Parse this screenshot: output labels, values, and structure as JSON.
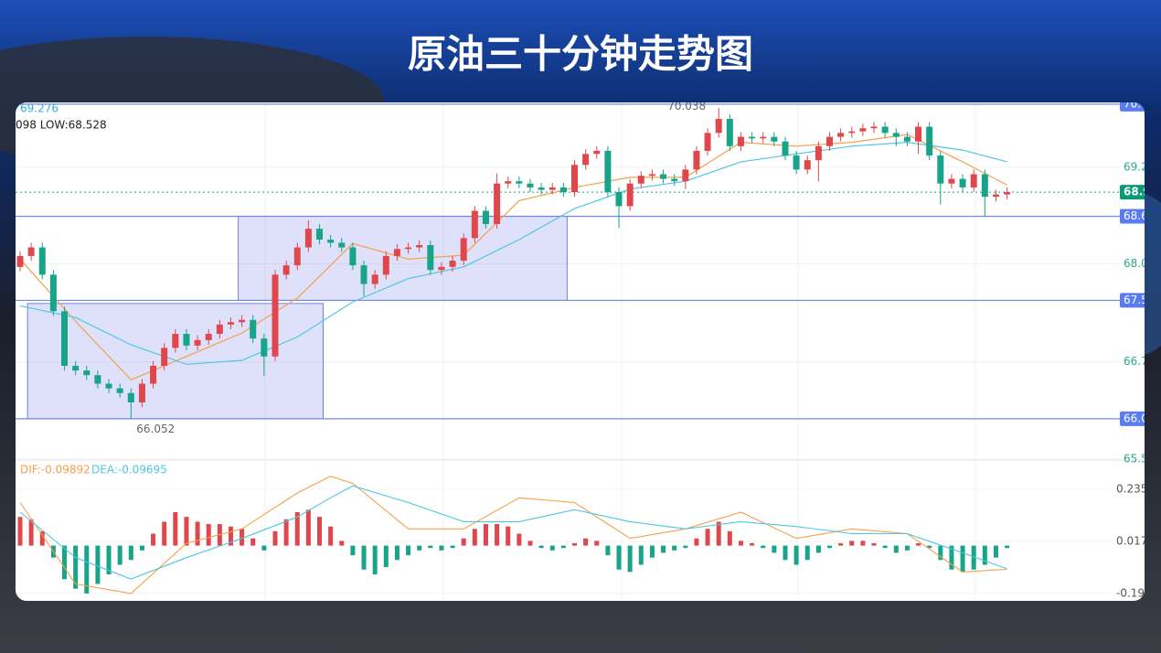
{
  "chart_data": {
    "type": "candlestick",
    "title": "原油三十分钟走势图",
    "info_ma": "69.276",
    "info_range": "098  LOW:68.528",
    "up_color": "#e0474c",
    "down_color": "#17a488",
    "open": [
      68.0,
      68.14,
      68.25,
      67.9,
      67.43,
      66.73,
      66.67,
      66.61,
      66.5,
      66.44,
      66.38,
      66.26,
      66.5,
      66.73,
      66.96,
      67.14,
      66.99,
      67.06,
      67.14,
      67.26,
      67.29,
      67.32,
      67.08,
      66.85,
      67.9,
      68.02,
      68.25,
      68.49,
      68.35,
      68.31,
      68.25,
      68.02,
      67.78,
      67.9,
      68.14,
      68.23,
      68.25,
      68.28,
      67.96,
      68.0,
      68.08,
      68.37,
      68.72,
      68.55,
      69.07,
      69.1,
      69.07,
      69.02,
      68.99,
      69.02,
      68.96,
      69.31,
      69.45,
      69.49,
      68.96,
      68.78,
      69.07,
      69.17,
      69.19,
      69.13,
      69.1,
      69.25,
      69.49,
      69.72,
      69.9,
      69.55,
      69.67,
      69.65,
      69.67,
      69.61,
      69.43,
      69.25,
      69.37,
      69.55,
      69.67,
      69.72,
      69.74,
      69.78,
      69.8,
      69.72,
      69.67,
      69.61,
      69.8,
      69.43,
      69.07,
      69.13,
      69.02,
      69.19,
      68.9,
      68.93
    ],
    "high": [
      68.2,
      68.31,
      68.31,
      67.96,
      67.49,
      66.79,
      66.73,
      66.67,
      66.56,
      66.5,
      66.44,
      66.56,
      66.79,
      67.02,
      67.2,
      67.2,
      67.12,
      67.2,
      67.32,
      67.35,
      67.38,
      67.38,
      67.14,
      67.96,
      68.08,
      68.31,
      68.6,
      68.55,
      68.41,
      68.37,
      68.31,
      68.08,
      67.96,
      68.2,
      68.29,
      68.31,
      68.34,
      68.34,
      68.06,
      68.14,
      68.43,
      68.78,
      68.78,
      69.2,
      69.16,
      69.16,
      69.13,
      69.08,
      69.08,
      69.08,
      69.37,
      69.51,
      69.55,
      69.55,
      69.02,
      69.13,
      69.23,
      69.25,
      69.25,
      69.19,
      69.31,
      69.55,
      69.78,
      70.038,
      69.96,
      69.73,
      69.73,
      69.73,
      69.73,
      69.67,
      69.49,
      69.43,
      69.61,
      69.73,
      69.78,
      69.8,
      69.84,
      69.86,
      69.86,
      69.78,
      69.73,
      69.86,
      69.86,
      69.49,
      69.19,
      69.19,
      69.25,
      69.25,
      68.99,
      69.02
    ],
    "low": [
      67.94,
      68.08,
      67.84,
      67.37,
      66.67,
      66.61,
      66.55,
      66.44,
      66.38,
      66.32,
      66.052,
      66.2,
      66.44,
      66.67,
      66.9,
      66.93,
      66.93,
      67.0,
      67.08,
      67.2,
      67.23,
      67.02,
      66.6,
      66.79,
      67.84,
      67.96,
      68.19,
      68.29,
      68.25,
      68.19,
      67.96,
      67.62,
      67.72,
      67.84,
      68.08,
      68.17,
      68.19,
      67.9,
      67.9,
      67.94,
      68.02,
      68.31,
      68.49,
      68.49,
      69.01,
      69.01,
      68.96,
      68.93,
      68.93,
      68.9,
      68.9,
      69.25,
      69.39,
      68.9,
      68.5,
      68.72,
      69.01,
      69.11,
      69.07,
      69.04,
      69.0,
      69.19,
      69.43,
      69.66,
      69.49,
      69.49,
      69.59,
      69.59,
      69.55,
      69.37,
      69.19,
      69.19,
      69.1,
      69.49,
      69.61,
      69.66,
      69.68,
      69.72,
      69.66,
      69.55,
      69.55,
      69.45,
      69.37,
      68.8,
      69.01,
      68.96,
      68.96,
      68.65,
      68.84,
      68.87
    ],
    "close": [
      68.14,
      68.25,
      67.9,
      67.43,
      66.73,
      66.67,
      66.61,
      66.5,
      66.44,
      66.38,
      66.26,
      66.5,
      66.73,
      66.96,
      67.14,
      66.99,
      67.06,
      67.14,
      67.26,
      67.29,
      67.32,
      67.08,
      66.85,
      67.9,
      68.02,
      68.25,
      68.49,
      68.35,
      68.31,
      68.25,
      68.02,
      67.78,
      67.9,
      68.14,
      68.23,
      68.25,
      68.28,
      67.96,
      68.0,
      68.08,
      68.37,
      68.72,
      68.55,
      69.07,
      69.1,
      69.07,
      69.02,
      68.99,
      69.02,
      68.96,
      69.31,
      69.45,
      69.49,
      68.96,
      68.78,
      69.07,
      69.17,
      69.19,
      69.13,
      69.1,
      69.25,
      69.49,
      69.72,
      69.9,
      69.55,
      69.67,
      69.65,
      69.67,
      69.61,
      69.43,
      69.25,
      69.37,
      69.55,
      69.67,
      69.72,
      69.74,
      69.78,
      69.8,
      69.72,
      69.67,
      69.61,
      69.8,
      69.43,
      69.07,
      69.13,
      69.02,
      69.19,
      68.9,
      68.93,
      68.96
    ],
    "ma_lines": [
      {
        "color": "#f5a04a",
        "x": [
          0,
          5,
          10,
          15,
          20,
          25,
          30,
          35,
          40,
          45,
          50,
          55,
          60,
          65,
          70,
          75,
          80,
          85,
          89
        ],
        "values": [
          68.1,
          67.3,
          66.55,
          66.85,
          67.15,
          67.6,
          68.3,
          68.1,
          68.15,
          68.85,
          69.02,
          69.15,
          69.15,
          69.6,
          69.55,
          69.6,
          69.7,
          69.35,
          69.05
        ]
      },
      {
        "color": "#4cc8e0",
        "x": [
          0,
          5,
          10,
          15,
          20,
          25,
          30,
          35,
          40,
          45,
          50,
          55,
          60,
          65,
          70,
          75,
          80,
          85,
          89
        ],
        "values": [
          67.5,
          67.35,
          67.0,
          66.75,
          66.8,
          67.1,
          67.55,
          67.85,
          68.0,
          68.35,
          68.75,
          69.0,
          69.1,
          69.35,
          69.45,
          69.55,
          69.6,
          69.5,
          69.35
        ]
      }
    ],
    "zones": [
      {
        "start": 1,
        "end": 27,
        "low": 66.05,
        "high": 67.53
      },
      {
        "start": 20,
        "end": 49,
        "low": 67.57,
        "high": 68.65
      }
    ],
    "levels": [
      70.09,
      68.65,
      67.57,
      66.05
    ],
    "last_price": 68.96,
    "ylim": [
      65.52,
      70.1
    ],
    "yticks": [
      69.28,
      68.04,
      66.78,
      65.53
    ],
    "macd": {
      "dif_label": "DIF:-0.09892",
      "dea_label": "DEA:-0.09695",
      "dif": {
        "color": "#f5a04a",
        "x": [
          0,
          5,
          10,
          15,
          20,
          25,
          28,
          30,
          35,
          40,
          45,
          50,
          55,
          60,
          65,
          70,
          75,
          80,
          85,
          89
        ],
        "values": [
          0.18,
          -0.16,
          -0.2,
          0.01,
          0.07,
          0.22,
          0.29,
          0.26,
          0.07,
          0.07,
          0.2,
          0.18,
          0.03,
          0.07,
          0.14,
          0.03,
          0.07,
          0.05,
          -0.11,
          -0.09892
        ]
      },
      "dea": {
        "color": "#4cc8e0",
        "x": [
          0,
          5,
          10,
          15,
          20,
          25,
          28,
          30,
          35,
          40,
          45,
          50,
          55,
          60,
          65,
          70,
          75,
          80,
          85,
          89
        ],
        "values": [
          0.14,
          -0.05,
          -0.14,
          -0.05,
          0.03,
          0.12,
          0.2,
          0.25,
          0.18,
          0.1,
          0.1,
          0.15,
          0.1,
          0.07,
          0.1,
          0.08,
          0.05,
          0.05,
          -0.03,
          -0.09695
        ]
      },
      "hist": [
        0.12,
        0.11,
        0.06,
        -0.05,
        -0.14,
        -0.18,
        -0.2,
        -0.16,
        -0.12,
        -0.08,
        -0.06,
        -0.02,
        0.05,
        0.1,
        0.14,
        0.12,
        0.1,
        0.09,
        0.09,
        0.08,
        0.07,
        0.03,
        -0.02,
        0.06,
        0.11,
        0.14,
        0.15,
        0.12,
        0.08,
        0.02,
        -0.04,
        -0.1,
        -0.12,
        -0.09,
        -0.06,
        -0.04,
        -0.02,
        -0.01,
        -0.02,
        -0.01,
        0.03,
        0.07,
        0.09,
        0.09,
        0.08,
        0.05,
        0.02,
        -0.01,
        -0.02,
        -0.01,
        0.01,
        0.03,
        0.02,
        -0.04,
        -0.1,
        -0.11,
        -0.08,
        -0.05,
        -0.03,
        -0.02,
        -0.01,
        0.03,
        0.07,
        0.1,
        0.06,
        0.02,
        0.01,
        -0.01,
        -0.03,
        -0.06,
        -0.08,
        -0.06,
        -0.03,
        -0.01,
        0.01,
        0.02,
        0.02,
        0.01,
        -0.01,
        -0.03,
        -0.02,
        0.01,
        -0.01,
        -0.06,
        -0.1,
        -0.11,
        -0.1,
        -0.08,
        -0.05,
        -0.01
      ],
      "ylim": [
        -0.227,
        0.35
      ],
      "yticks": [
        0.2358,
        0.0177,
        -0.1999
      ]
    }
  }
}
